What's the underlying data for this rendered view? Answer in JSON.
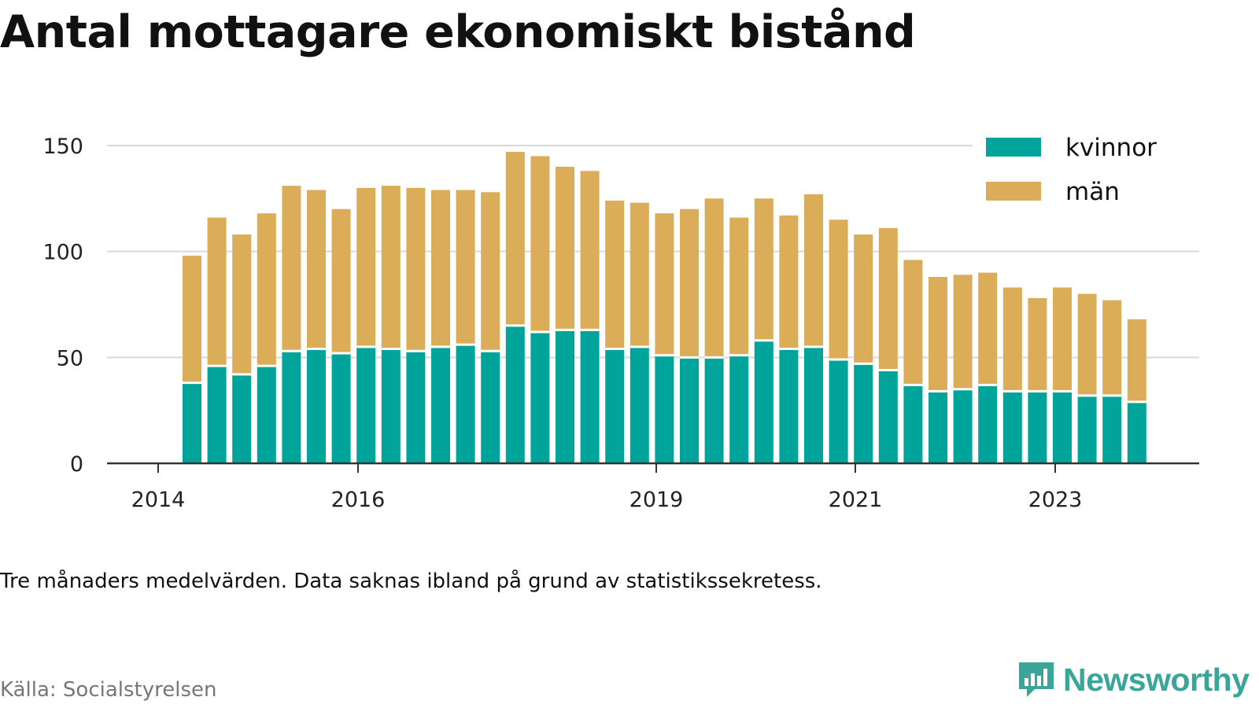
{
  "title": "Antal mottagare ekonomiskt bistånd",
  "note": "Tre månaders medelvärden. Data saknas ibland på grund av statistikssekretess.",
  "source": "Källa: Socialstyrelsen",
  "brand": {
    "name": "Newsworthy",
    "icon": "newsworthy-logo-icon",
    "color": "#3aa69a"
  },
  "colors": {
    "kvinnor": "#00a49a",
    "man": "#dbad59",
    "grid": "#d9d9d9",
    "axis": "#333333"
  },
  "chart_data": {
    "type": "bar",
    "stacked": true,
    "x_ticks": [
      "2014",
      "2016",
      "2019",
      "2021",
      "2023"
    ],
    "ylim": [
      0,
      150
    ],
    "y_ticks": [
      0,
      50,
      100,
      150
    ],
    "grid": true,
    "legend_position": "top-right",
    "series": [
      {
        "name": "kvinnor",
        "values": [
          38,
          46,
          42,
          46,
          53,
          54,
          52,
          55,
          54,
          53,
          55,
          56,
          53,
          65,
          62,
          63,
          63,
          54,
          55,
          51,
          50,
          50,
          51,
          58,
          54,
          55,
          49,
          47,
          44,
          37,
          34,
          35,
          37,
          34,
          34,
          34,
          32,
          32,
          29
        ]
      },
      {
        "name": "män",
        "values": [
          60,
          70,
          66,
          72,
          78,
          75,
          68,
          75,
          77,
          77,
          74,
          73,
          75,
          82,
          83,
          77,
          75,
          70,
          68,
          67,
          70,
          75,
          65,
          67,
          63,
          72,
          66,
          61,
          67,
          59,
          54,
          54,
          53,
          49,
          44,
          49,
          48,
          45,
          39
        ]
      }
    ]
  }
}
